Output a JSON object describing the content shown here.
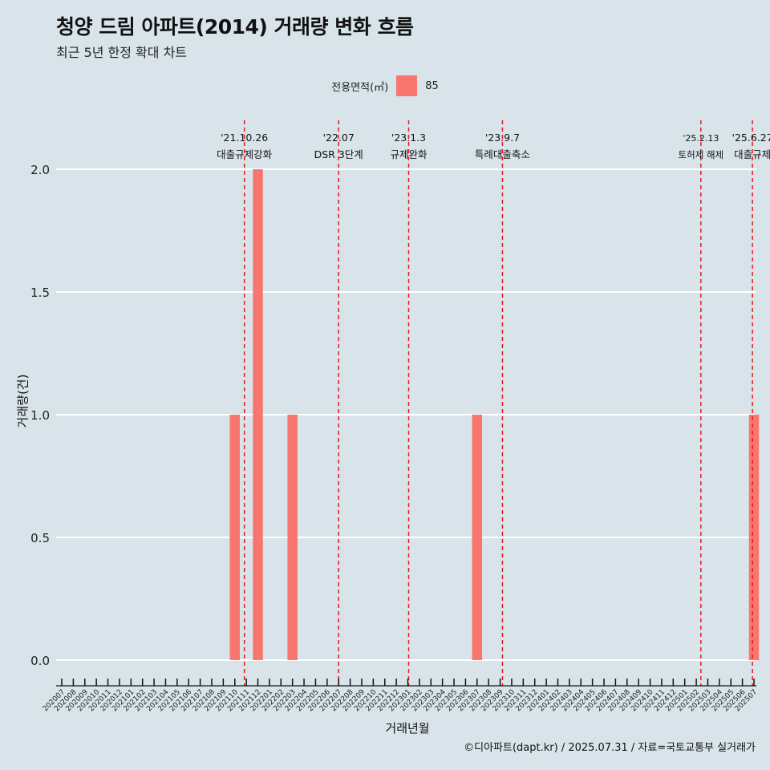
{
  "title": "청양 드림 아파트(2014) 거래량 변화 흐름",
  "subtitle": "최근 5년 한정 확대 차트",
  "caption": "©디아파트(dapt.kr) / 2025.07.31 / 자료=국토교통부 실거래가",
  "legend": {
    "title": "전용면적(㎡)",
    "items": [
      {
        "label": "85",
        "color": "#f8766d"
      }
    ]
  },
  "chart_data": {
    "type": "bar",
    "title": "청양 드림 아파트(2014) 거래량 변화 흐름",
    "subtitle": "최근 5년 한정 확대 차트",
    "xlabel": "거래년월",
    "ylabel": "거래량(건)",
    "ylim": [
      0,
      2
    ],
    "yticks": [
      "0.0",
      "0.5",
      "1.0",
      "1.5",
      "2.0"
    ],
    "grid": "horizontal",
    "legend_position": "top",
    "categories": [
      "202007",
      "202008",
      "202009",
      "202010",
      "202011",
      "202012",
      "202101",
      "202102",
      "202103",
      "202104",
      "202105",
      "202106",
      "202107",
      "202108",
      "202109",
      "202110",
      "202111",
      "202112",
      "202201",
      "202202",
      "202203",
      "202204",
      "202205",
      "202206",
      "202207",
      "202208",
      "202209",
      "202210",
      "202211",
      "202212",
      "202301",
      "202302",
      "202303",
      "202304",
      "202305",
      "202306",
      "202307",
      "202308",
      "202309",
      "202310",
      "202311",
      "202312",
      "202401",
      "202402",
      "202403",
      "202404",
      "202405",
      "202406",
      "202407",
      "202408",
      "202409",
      "202410",
      "202411",
      "202412",
      "202501",
      "202502",
      "202503",
      "202504",
      "202505",
      "202506",
      "202507"
    ],
    "series": [
      {
        "name": "85",
        "color": "#f8766d",
        "values": [
          0,
          0,
          0,
          0,
          0,
          0,
          0,
          0,
          0,
          0,
          0,
          0,
          0,
          0,
          0,
          1,
          0,
          2,
          0,
          0,
          1,
          0,
          0,
          0,
          0,
          0,
          0,
          0,
          0,
          0,
          0,
          0,
          0,
          0,
          0,
          0,
          1,
          0,
          0,
          0,
          0,
          0,
          0,
          0,
          0,
          0,
          0,
          0,
          0,
          0,
          0,
          0,
          0,
          0,
          0,
          0,
          0,
          0,
          0,
          0,
          1
        ]
      }
    ],
    "events": [
      {
        "date": "'21.10.26",
        "label": "대출규제강화",
        "month": "202110",
        "offset": 0.83
      },
      {
        "date": "'22.07",
        "label": "DSR 3단계",
        "month": "202207",
        "offset": 0.0
      },
      {
        "date": "'23.1.3",
        "label": "규제완화",
        "month": "202301",
        "offset": 0.07
      },
      {
        "date": "'23.9.7",
        "label": "특례대출축소",
        "month": "202309",
        "offset": 0.2
      },
      {
        "date": "'25.2.13",
        "label": "토허제 해제",
        "month": "202502",
        "offset": 0.4
      },
      {
        "date": "'25.6.27",
        "label": "대출규제",
        "month": "202506",
        "offset": 0.87
      }
    ]
  }
}
